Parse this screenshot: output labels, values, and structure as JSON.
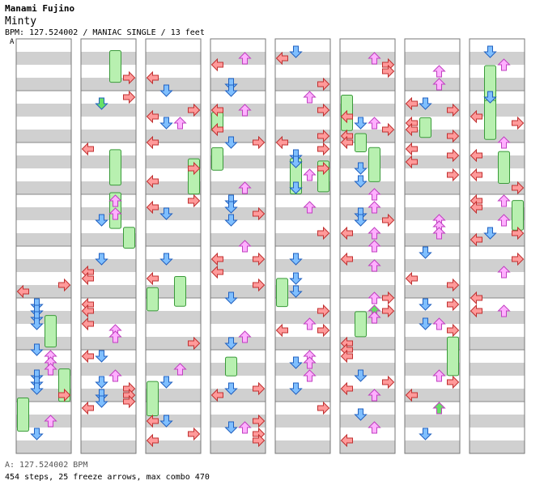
{
  "header": {
    "artist": "Manami Fujino",
    "title": "Minty",
    "meta": "BPM: 127.524002 / MANIAC SINGLE / 13 feet",
    "bpm_label": "A"
  },
  "footer": {
    "bpm_line": "A: 127.524002 BPM",
    "stats": "454 steps, 25 freeze arrows, max combo 470"
  },
  "colors": {
    "left_arrow": "#ff9a9a",
    "down_arrow": "#7fbfff",
    "up_arrow": "#ffb0ff",
    "right_arrow": "#ff9a9a",
    "freeze": "#b8f0b0",
    "shock_green": "#66e066",
    "stripe": "#d0d0d0"
  },
  "chart_data": {
    "type": "stepchart",
    "columns": 8,
    "measures_per_column": 8,
    "lanes": [
      "left",
      "down",
      "up",
      "right"
    ],
    "total_steps": 454,
    "freeze_arrows": 25,
    "max_combo": 470
  }
}
